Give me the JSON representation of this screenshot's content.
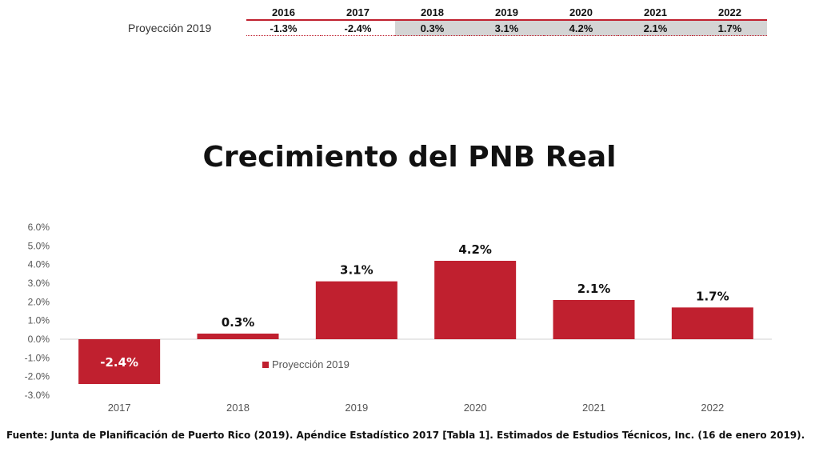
{
  "table": {
    "years": [
      "2016",
      "2017",
      "2018",
      "2019",
      "2020",
      "2021",
      "2022"
    ],
    "row_label": "Proyección 2019",
    "values": [
      "-1.3%",
      "-2.4%",
      "0.3%",
      "3.1%",
      "4.2%",
      "2.1%",
      "1.7%"
    ],
    "shaded_from_index": 2
  },
  "chart_data": {
    "type": "bar",
    "title": "Crecimiento del PNB Real",
    "categories": [
      "2017",
      "2018",
      "2019",
      "2020",
      "2021",
      "2022"
    ],
    "series": [
      {
        "name": "Proyección 2019",
        "values": [
          -2.4,
          0.3,
          3.1,
          4.2,
          2.1,
          1.7
        ],
        "color": "#c0202f"
      }
    ],
    "data_labels": [
      "-2.4%",
      "0.3%",
      "3.1%",
      "4.2%",
      "2.1%",
      "1.7%"
    ],
    "y_ticks": [
      "6.0%",
      "5.0%",
      "4.0%",
      "3.0%",
      "2.0%",
      "1.0%",
      "0.0%",
      "-1.0%",
      "-2.0%",
      "-3.0%"
    ],
    "ylim": [
      -3.0,
      6.0
    ],
    "xlabel": "",
    "ylabel": "",
    "grid": false,
    "legend_position": "inside-center"
  },
  "source": "Fuente: Junta de Planificación de Puerto Rico (2019). Apéndice Estadístico 2017 [Tabla 1]. Estimados de Estudios Técnicos, Inc. (16 de enero 2019)."
}
